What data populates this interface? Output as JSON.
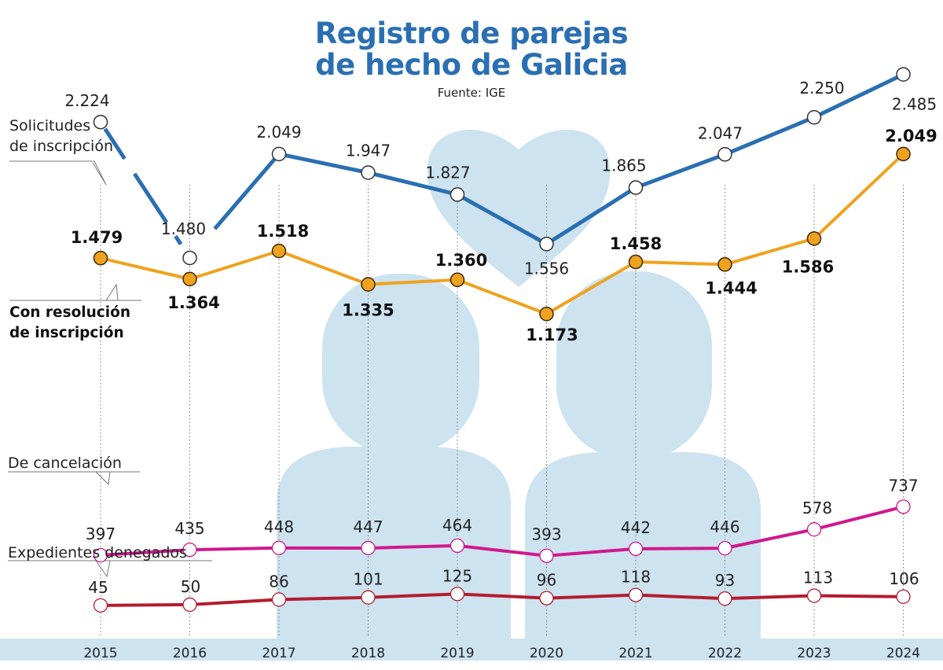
{
  "title_line1": "Registro de parejas",
  "title_line2": "de hecho de Galicia",
  "source": "Fuente: IGE",
  "chart_data": {
    "type": "line",
    "title": "Registro de parejas de hecho de Galicia",
    "categories": [
      "2015",
      "2016",
      "2017",
      "2018",
      "2019",
      "2020",
      "2021",
      "2022",
      "2023",
      "2024"
    ],
    "series": [
      {
        "key": "solicitudes",
        "name_line1": "Solicitudes",
        "name_line2": "de inscripción",
        "color": "#2a6fb2",
        "marker_fill": "#ffffff",
        "bold": false,
        "values": [
          2224,
          1480,
          2049,
          1947,
          1827,
          1556,
          1865,
          2047,
          2250,
          2485
        ],
        "labels": [
          "2.224",
          "1.480",
          "2.049",
          "1.947",
          "1.827",
          "1.556",
          "1.865",
          "2.047",
          "2.250",
          "2.485"
        ]
      },
      {
        "key": "resolucion",
        "name_line1": "Con resolución",
        "name_line2": "de inscripción",
        "color": "#f0a21e",
        "marker_fill": "#f0a21e",
        "bold": true,
        "values": [
          1479,
          1364,
          1518,
          1335,
          1360,
          1173,
          1458,
          1444,
          1586,
          2049
        ],
        "labels": [
          "1.479",
          "1.364",
          "1.518",
          "1.335",
          "1.360",
          "1.173",
          "1.458",
          "1.444",
          "1.586",
          "2.049"
        ]
      },
      {
        "key": "cancelacion",
        "name_line1": "De cancelación",
        "name_line2": "",
        "color": "#d0188c",
        "marker_fill": "#ffffff",
        "bold": false,
        "values": [
          397,
          435,
          448,
          447,
          464,
          393,
          442,
          446,
          578,
          737
        ],
        "labels": [
          "397",
          "435",
          "448",
          "447",
          "464",
          "393",
          "442",
          "446",
          "578",
          "737"
        ]
      },
      {
        "key": "denegados",
        "name_line1": "Expedientes denegados",
        "name_line2": "",
        "color": "#b31c2e",
        "marker_fill": "#ffffff",
        "bold": false,
        "values": [
          45,
          50,
          86,
          101,
          125,
          96,
          118,
          93,
          113,
          106
        ],
        "labels": [
          "45",
          "50",
          "86",
          "101",
          "125",
          "96",
          "118",
          "93",
          "113",
          "106"
        ]
      }
    ],
    "background_color": "#cde3f0",
    "xlabel": "",
    "ylabel": "",
    "grid": "vertical dotted lines per year",
    "legend": "inline labels at left"
  }
}
